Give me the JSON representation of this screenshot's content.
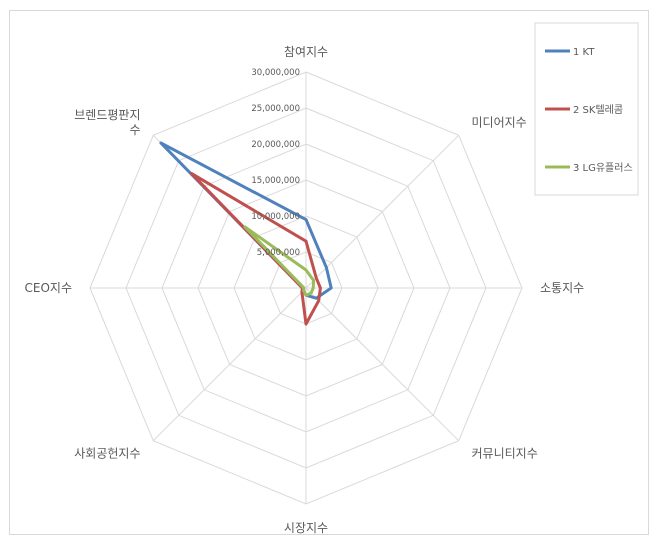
{
  "chart_data": {
    "type": "radar",
    "axes": [
      "참여지수",
      "미디어지수",
      "소통지수",
      "커뮤니티지수",
      "시장지수",
      "사회공헌지수",
      "CEO지수",
      "브렌드평판지수"
    ],
    "axes_display": [
      "참여지수",
      "미디어지수",
      "소통지수",
      "커뮤니티지수",
      "시장지수",
      "사회공헌지수",
      "CEO지수",
      [
        "브렌드평판지",
        "수"
      ]
    ],
    "rmax": 30000000,
    "ticks": [
      5000000,
      10000000,
      15000000,
      20000000,
      25000000,
      30000000
    ],
    "tick_labels": [
      "5,000,000",
      "10,000,000",
      "15,000,000",
      "20,000,000",
      "25,000,000",
      "30,000,000"
    ],
    "grid": true,
    "legend_position": "top-right",
    "series": [
      {
        "name": "1  KT",
        "color": "#4f81bd",
        "values": [
          9500000,
          4000000,
          3500000,
          2000000,
          1000000,
          500000,
          500000,
          28500000
        ]
      },
      {
        "name": "2  SK텔레콤",
        "color": "#c0504d",
        "values": [
          6500000,
          2000000,
          2000000,
          2500000,
          5000000,
          800000,
          500000,
          22500000
        ]
      },
      {
        "name": "3  LG유플러스",
        "color": "#9bbb59",
        "values": [
          2500000,
          1500000,
          1000000,
          1000000,
          1000000,
          500000,
          300000,
          12000000
        ]
      }
    ]
  }
}
